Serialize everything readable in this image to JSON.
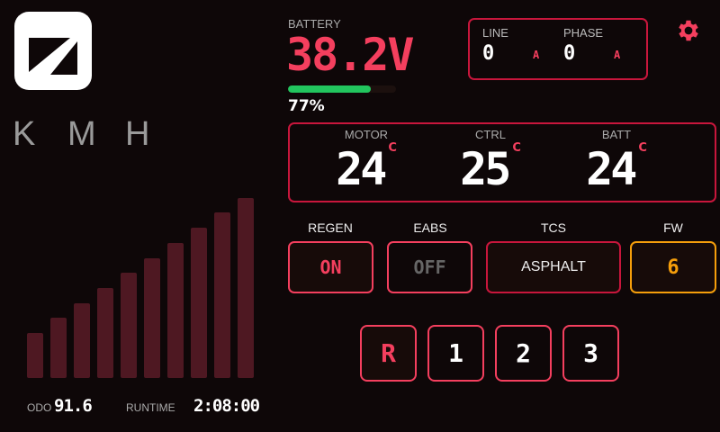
{
  "logo": {
    "icon": "slashed-square-logo"
  },
  "speed_unit": [
    "K",
    "M",
    "H"
  ],
  "speed_bars": {
    "count": 10,
    "lit": 0,
    "color": "#4e1822"
  },
  "battery": {
    "label": "BATTERY",
    "voltage": "38.2V",
    "percent_label": "77%",
    "percent": 77,
    "bar_color": "#22c55e"
  },
  "current": {
    "line_label": "LINE",
    "line_value": "0",
    "line_unit": "A",
    "phase_label": "PHASE",
    "phase_value": "0",
    "phase_unit": "A"
  },
  "settings": {
    "icon": "gear-icon",
    "color": "#f43f5e"
  },
  "temps": [
    {
      "label": "MOTOR",
      "value": "24",
      "unit": "C"
    },
    {
      "label": "CTRL",
      "value": "25",
      "unit": "C"
    },
    {
      "label": "BATT",
      "value": "24",
      "unit": "C"
    }
  ],
  "modes": {
    "regen": {
      "label": "REGEN",
      "value": "ON"
    },
    "eabs": {
      "label": "EABS",
      "value": "OFF"
    },
    "tcs": {
      "label": "TCS",
      "value": "ASPHALT"
    },
    "fw": {
      "label": "FW",
      "value": "6"
    }
  },
  "gears": {
    "items": [
      "R",
      "1",
      "2",
      "3"
    ],
    "selected": "R"
  },
  "trip": {
    "odo_label": "ODO",
    "odo_value": "91.6",
    "runtime_label": "RUNTIME",
    "runtime_value": "2:08:00"
  },
  "colors": {
    "accent": "#f43f5e",
    "border": "#c8163c",
    "warning": "#f59e0b",
    "background": "#0e0708"
  }
}
